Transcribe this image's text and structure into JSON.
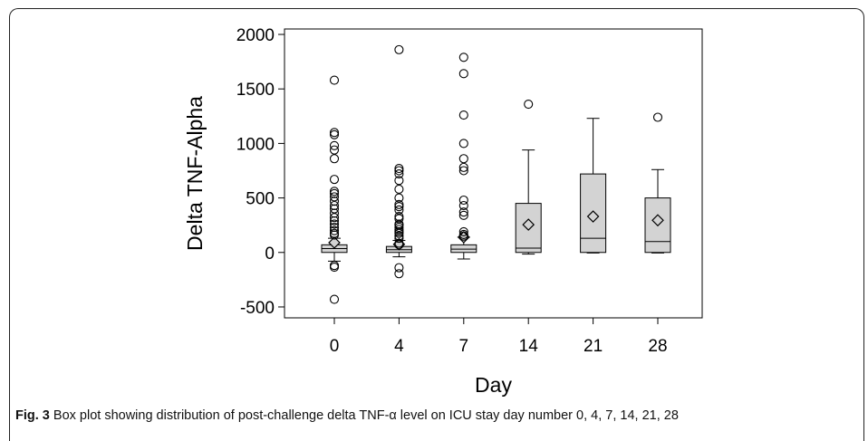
{
  "figure": {
    "caption_label": "Fig. 3",
    "caption_text": "Box plot showing distribution of post-challenge delta TNF-α level on ICU stay day number 0, 4, 7, 14, 21, 28"
  },
  "chart_data": {
    "type": "box",
    "xlabel": "Day",
    "ylabel": "Delta TNF-Alpha",
    "categories": [
      "0",
      "4",
      "7",
      "14",
      "21",
      "28"
    ],
    "ylim": [
      -600,
      2050
    ],
    "yticks": [
      -500,
      0,
      500,
      1000,
      1500,
      2000
    ],
    "ytick_labels": [
      "-500",
      "0",
      "500",
      "1000",
      "1500",
      "2000"
    ],
    "grid": false,
    "colors": {
      "box_fill": "#d3d3d3",
      "line": "#000000"
    },
    "boxes": [
      {
        "category": "0",
        "whisker_low": -80,
        "q1": 0,
        "median": 35,
        "q3": 70,
        "whisker_high": 130,
        "mean": 90,
        "outliers": [
          1580,
          1100,
          1080,
          980,
          940,
          860,
          670,
          560,
          540,
          510,
          470,
          430,
          400,
          360,
          320,
          290,
          260,
          230,
          200,
          175,
          160,
          -120,
          -135,
          -430
        ]
      },
      {
        "category": "4",
        "whisker_low": -40,
        "q1": 0,
        "median": 25,
        "q3": 55,
        "whisker_high": 110,
        "mean": 75,
        "outliers": [
          1860,
          770,
          750,
          720,
          660,
          580,
          500,
          440,
          420,
          390,
          330,
          310,
          260,
          250,
          230,
          210,
          190,
          175,
          150,
          130,
          85,
          70,
          -140,
          -195
        ]
      },
      {
        "category": "7",
        "whisker_low": -60,
        "q1": 0,
        "median": 30,
        "q3": 70,
        "whisker_high": 140,
        "mean": 140,
        "outliers": [
          1790,
          1640,
          1260,
          1000,
          860,
          780,
          750,
          480,
          430,
          370,
          340,
          190,
          165,
          150
        ]
      },
      {
        "category": "14",
        "whisker_low": -15,
        "q1": 0,
        "median": 40,
        "q3": 450,
        "whisker_high": 940,
        "mean": 255,
        "outliers": [
          1360
        ]
      },
      {
        "category": "21",
        "whisker_low": -5,
        "q1": 0,
        "median": 130,
        "q3": 720,
        "whisker_high": 1230,
        "mean": 330,
        "outliers": []
      },
      {
        "category": "28",
        "whisker_low": -5,
        "q1": 0,
        "median": 100,
        "q3": 500,
        "whisker_high": 760,
        "mean": 295,
        "outliers": [
          1240
        ]
      }
    ]
  }
}
